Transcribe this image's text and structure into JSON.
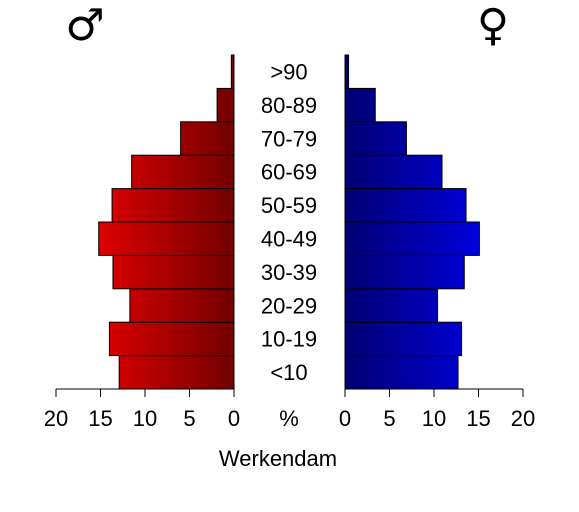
{
  "chart_data": {
    "type": "pyramid",
    "title": "Werkendam",
    "axis_label": "%",
    "categories": [
      "<10",
      "10-19",
      "20-29",
      "30-39",
      "40-49",
      "50-59",
      "60-69",
      "70-79",
      "80-89",
      ">90"
    ],
    "series": [
      {
        "name": "♂",
        "color": "#ff0000",
        "values": [
          12.9,
          14.0,
          11.7,
          13.6,
          15.2,
          13.7,
          11.5,
          6.0,
          1.9,
          0.3
        ]
      },
      {
        "name": "♀",
        "color": "#0000ff",
        "values": [
          12.7,
          13.1,
          10.4,
          13.4,
          15.1,
          13.6,
          10.9,
          6.9,
          3.4,
          0.4
        ]
      }
    ],
    "xlim": [
      0,
      20
    ],
    "xticks": [
      0,
      5,
      10,
      15,
      20
    ]
  }
}
